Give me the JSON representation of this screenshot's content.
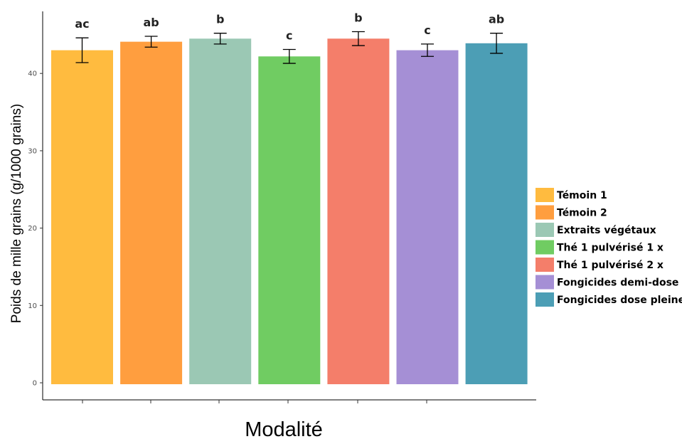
{
  "chart_data": {
    "type": "bar",
    "title": "",
    "xlabel": "Modalité",
    "ylabel": "Poids de mille grains (g/1000 grains)",
    "ylim": [
      0,
      47
    ],
    "yticks": [
      0,
      10,
      20,
      30,
      40
    ],
    "grid": false,
    "legend_position": "right",
    "categories": [
      "Témoin 1",
      "Témoin 2",
      "Extraits végétaux",
      "Thé  1 pulvérisé 1 x",
      "Thé 1 pulvérisé 2 x",
      "Fongicides demi-dose",
      "Fongicides dose pleine"
    ],
    "values": [
      43.0,
      44.1,
      44.5,
      42.2,
      44.5,
      43.0,
      43.9
    ],
    "error": [
      1.6,
      0.7,
      0.7,
      0.9,
      0.9,
      0.8,
      1.3
    ],
    "significance": [
      "ac",
      "ab",
      "b",
      "c",
      "b",
      "c",
      "ab"
    ],
    "colors": [
      "#FFBB3F",
      "#FF9E3F",
      "#9BC8B4",
      "#70CC62",
      "#F47E6A",
      "#A58FD5",
      "#4C9EB5"
    ]
  }
}
